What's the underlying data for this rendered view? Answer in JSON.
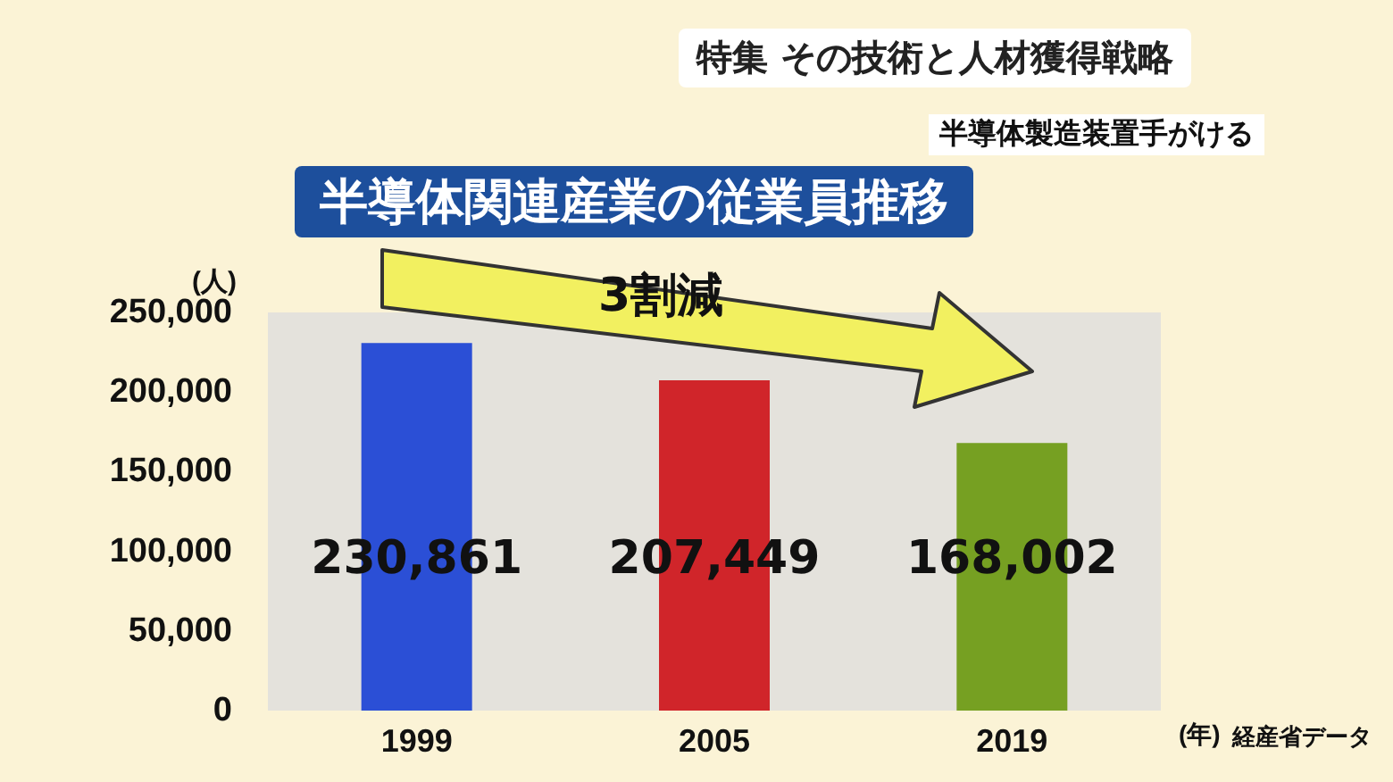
{
  "chart_data": {
    "type": "bar",
    "title": "半導体関連産業の従業員推移",
    "subtitle": "特集 その技術と人材獲得戦略",
    "annotations": [
      "半導体製造装置手がける",
      "3割減",
      "経産省データ"
    ],
    "ylabel": "(人)",
    "xlabel": "(年)",
    "categories": [
      "1999",
      "2005",
      "2019"
    ],
    "values": [
      230861,
      207449,
      168002
    ],
    "colors": [
      "#2b4fd6",
      "#d0252a",
      "#76a022"
    ],
    "value_labels": [
      "230,861",
      "207,449",
      "168,002"
    ],
    "ylim": [
      0,
      250000
    ],
    "yticks": [
      {
        "value": 0,
        "label": "0"
      },
      {
        "value": 50000,
        "label": "50,000"
      },
      {
        "value": 100000,
        "label": "100,000"
      },
      {
        "value": 150000,
        "label": "150,000"
      },
      {
        "value": 200000,
        "label": "200,000"
      },
      {
        "value": 250000,
        "label": "250,000"
      }
    ],
    "grid": false
  }
}
